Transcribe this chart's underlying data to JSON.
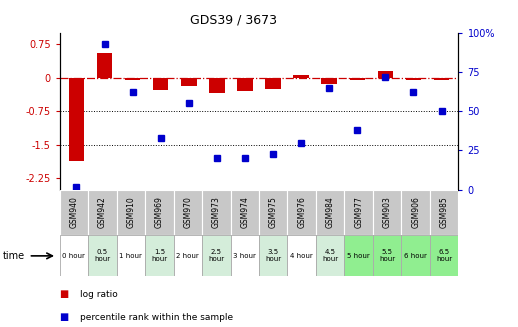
{
  "title": "GDS39 / 3673",
  "samples": [
    "GSM940",
    "GSM942",
    "GSM910",
    "GSM969",
    "GSM970",
    "GSM973",
    "GSM974",
    "GSM975",
    "GSM976",
    "GSM984",
    "GSM977",
    "GSM903",
    "GSM906",
    "GSM985"
  ],
  "time_labels": [
    "0 hour",
    "0.5\nhour",
    "1 hour",
    "1.5\nhour",
    "2 hour",
    "2.5\nhour",
    "3 hour",
    "3.5\nhour",
    "4 hour",
    "4.5\nhour",
    "5 hour",
    "5.5\nhour",
    "6 hour",
    "6.5\nhour"
  ],
  "log_ratio": [
    -1.85,
    0.55,
    -0.05,
    -0.28,
    -0.18,
    -0.35,
    -0.3,
    -0.25,
    0.05,
    -0.15,
    -0.05,
    0.15,
    -0.05,
    -0.05
  ],
  "percentile": [
    2,
    93,
    62,
    33,
    55,
    20,
    20,
    23,
    30,
    65,
    38,
    72,
    62,
    50
  ],
  "ylim_left": [
    -2.5,
    1.0
  ],
  "ylim_right": [
    0,
    100
  ],
  "yticks_left": [
    0.75,
    0,
    -0.75,
    -1.5,
    -2.25
  ],
  "yticks_right": [
    100,
    75,
    50,
    25,
    0
  ],
  "bar_color_red": "#cc0000",
  "bar_color_blue": "#0000cc",
  "time_colors": [
    "#ffffff",
    "#d4edda",
    "#ffffff",
    "#d4edda",
    "#ffffff",
    "#d4edda",
    "#ffffff",
    "#d4edda",
    "#ffffff",
    "#d4edda",
    "#90ee90",
    "#90ee90",
    "#90ee90",
    "#90ee90"
  ],
  "sample_bg": "#c8c8c8",
  "legend_red": "log ratio",
  "legend_blue": "percentile rank within the sample"
}
